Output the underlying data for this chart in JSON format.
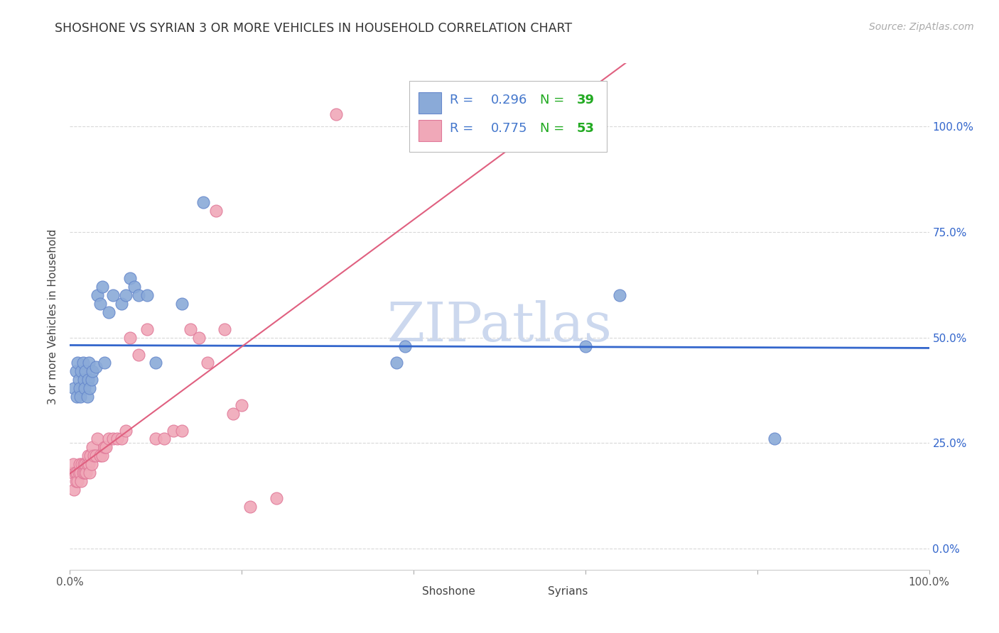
{
  "title": "SHOSHONE VS SYRIAN 3 OR MORE VEHICLES IN HOUSEHOLD CORRELATION CHART",
  "source": "Source: ZipAtlas.com",
  "ylabel": "3 or more Vehicles in Household",
  "xlim": [
    0.0,
    1.0
  ],
  "ylim": [
    -0.05,
    1.15
  ],
  "xticks": [
    0.0,
    0.2,
    0.4,
    0.6,
    0.8,
    1.0
  ],
  "yticks": [
    0.0,
    0.25,
    0.5,
    0.75,
    1.0
  ],
  "xtick_labels": [
    "0.0%",
    "",
    "",
    "",
    "",
    "100.0%"
  ],
  "ytick_labels_right": [
    "0.0%",
    "25.0%",
    "50.0%",
    "75.0%",
    "100.0%"
  ],
  "background_color": "#ffffff",
  "grid_color": "#d0d0d0",
  "shoshone_color": "#8aaad8",
  "syrian_color": "#f0a8b8",
  "shoshone_edge": "#6688cc",
  "syrian_edge": "#e07898",
  "blue_line_color": "#3366cc",
  "pink_line_color": "#e06080",
  "shoshone_R": 0.296,
  "shoshone_N": 39,
  "syrian_R": 0.775,
  "syrian_N": 53,
  "legend_R_color": "#4477cc",
  "legend_N_color": "#22aa22",
  "watermark_color": "#ccd8ee",
  "shoshone_x": [
    0.005,
    0.007,
    0.008,
    0.009,
    0.01,
    0.011,
    0.012,
    0.013,
    0.015,
    0.016,
    0.017,
    0.018,
    0.02,
    0.021,
    0.022,
    0.023,
    0.025,
    0.026,
    0.03,
    0.032,
    0.035,
    0.038,
    0.04,
    0.045,
    0.05,
    0.06,
    0.065,
    0.07,
    0.075,
    0.08,
    0.09,
    0.1,
    0.13,
    0.155,
    0.38,
    0.39,
    0.6,
    0.64,
    0.82
  ],
  "shoshone_y": [
    0.38,
    0.42,
    0.36,
    0.44,
    0.4,
    0.38,
    0.36,
    0.42,
    0.44,
    0.4,
    0.38,
    0.42,
    0.36,
    0.4,
    0.44,
    0.38,
    0.4,
    0.42,
    0.43,
    0.6,
    0.58,
    0.62,
    0.44,
    0.56,
    0.6,
    0.58,
    0.6,
    0.64,
    0.62,
    0.6,
    0.6,
    0.44,
    0.58,
    0.82,
    0.44,
    0.48,
    0.48,
    0.6,
    0.26
  ],
  "syrian_x": [
    0.003,
    0.004,
    0.005,
    0.006,
    0.007,
    0.008,
    0.009,
    0.01,
    0.011,
    0.012,
    0.013,
    0.014,
    0.015,
    0.016,
    0.017,
    0.018,
    0.019,
    0.02,
    0.021,
    0.022,
    0.023,
    0.024,
    0.025,
    0.026,
    0.028,
    0.03,
    0.032,
    0.035,
    0.038,
    0.04,
    0.042,
    0.045,
    0.05,
    0.055,
    0.06,
    0.065,
    0.07,
    0.08,
    0.09,
    0.1,
    0.11,
    0.12,
    0.13,
    0.14,
    0.15,
    0.16,
    0.17,
    0.18,
    0.19,
    0.2,
    0.21,
    0.24,
    0.31
  ],
  "syrian_y": [
    0.18,
    0.2,
    0.14,
    0.18,
    0.16,
    0.18,
    0.16,
    0.18,
    0.2,
    0.18,
    0.16,
    0.2,
    0.18,
    0.2,
    0.18,
    0.2,
    0.18,
    0.2,
    0.22,
    0.2,
    0.18,
    0.22,
    0.2,
    0.24,
    0.22,
    0.22,
    0.26,
    0.22,
    0.22,
    0.24,
    0.24,
    0.26,
    0.26,
    0.26,
    0.26,
    0.28,
    0.5,
    0.46,
    0.52,
    0.26,
    0.26,
    0.28,
    0.28,
    0.52,
    0.5,
    0.44,
    0.8,
    0.52,
    0.32,
    0.34,
    0.1,
    0.12,
    1.03
  ]
}
